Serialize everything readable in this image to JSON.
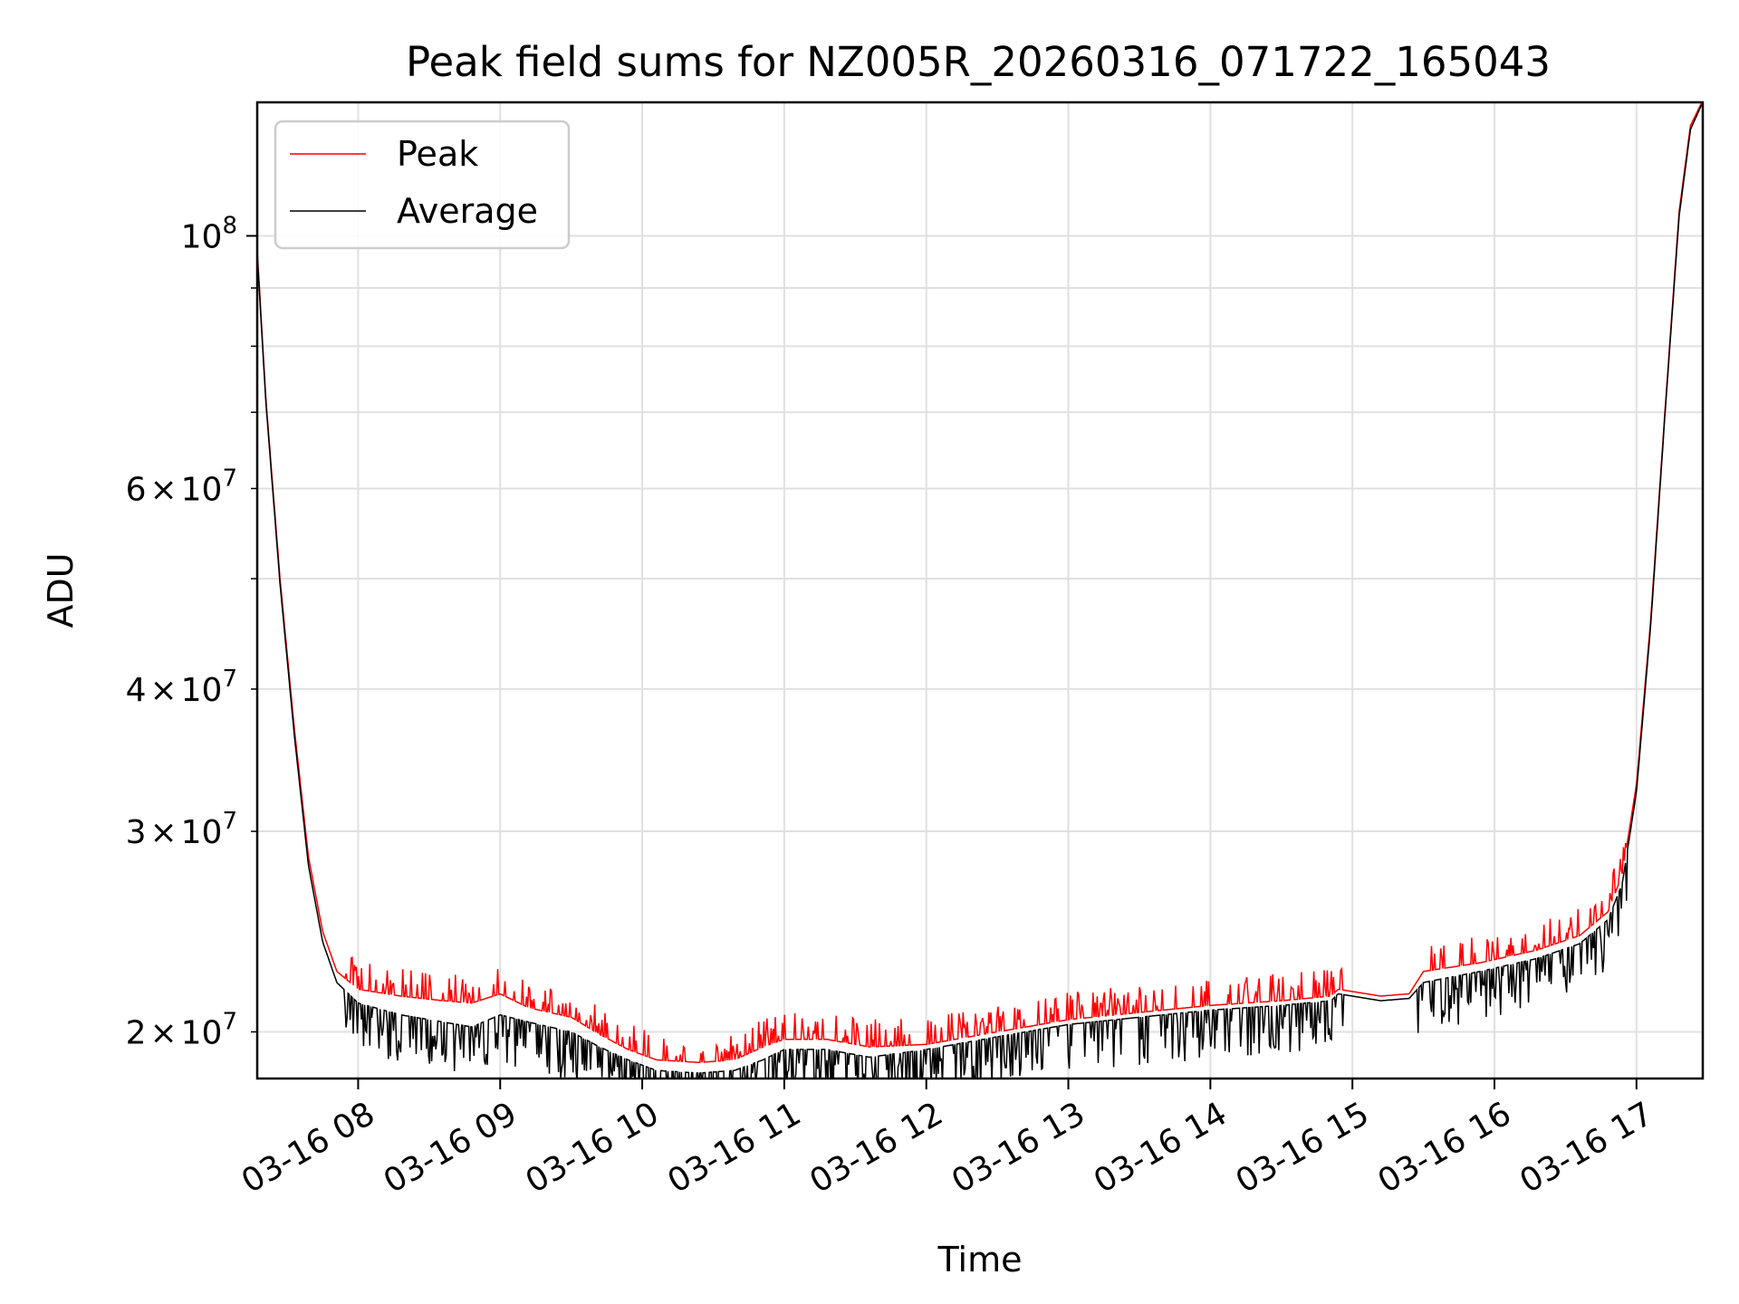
{
  "chart_data": {
    "type": "line",
    "title": "Peak field sums for NZ005R_20260316_071722_165043",
    "xlabel": "Time",
    "ylabel": "ADU",
    "yscale": "log",
    "ylim": [
      18200000,
      131000000
    ],
    "xlim": [
      "2026-03-16 07:17:22",
      "2026-03-16 17:28:00"
    ],
    "x_tick_labels": [
      "03-16 08",
      "03-16 09",
      "03-16 10",
      "03-16 11",
      "03-16 12",
      "03-16 13",
      "03-16 14",
      "03-16 15",
      "03-16 16",
      "03-16 17"
    ],
    "x_tick_hours": [
      8,
      9,
      10,
      11,
      12,
      13,
      14,
      15,
      16,
      17
    ],
    "y_major_ticks": [
      {
        "value": 100000000,
        "base": "10",
        "exp": "8",
        "mantissa": ""
      }
    ],
    "y_minor_ticks": [
      {
        "value": 20000000,
        "mantissa": "2",
        "base": "10",
        "exp": "7"
      },
      {
        "value": 30000000,
        "mantissa": "3",
        "base": "10",
        "exp": "7"
      },
      {
        "value": 40000000,
        "mantissa": "4",
        "base": "10",
        "exp": "7"
      },
      {
        "value": 60000000,
        "mantissa": "6",
        "base": "10",
        "exp": "7"
      }
    ],
    "y_minor_unlabeled": [
      50000000,
      70000000,
      80000000,
      90000000
    ],
    "grid": true,
    "legend": {
      "position": "top-left",
      "entries": [
        "Peak",
        "Average"
      ]
    },
    "series": [
      {
        "name": "Peak",
        "color": "#ff0000",
        "points": [
          [
            7.29,
            97000000
          ],
          [
            7.35,
            72000000
          ],
          [
            7.45,
            50000000
          ],
          [
            7.55,
            37000000
          ],
          [
            7.65,
            28500000
          ],
          [
            7.75,
            24500000
          ],
          [
            7.85,
            22600000
          ],
          [
            8.0,
            21800000
          ],
          [
            8.3,
            21500000
          ],
          [
            8.6,
            21300000
          ],
          [
            8.8,
            21200000
          ],
          [
            9.0,
            21600000
          ],
          [
            9.2,
            21000000
          ],
          [
            9.5,
            20600000
          ],
          [
            9.7,
            19900000
          ],
          [
            9.9,
            19300000
          ],
          [
            10.1,
            18900000
          ],
          [
            10.4,
            18800000
          ],
          [
            10.65,
            18900000
          ],
          [
            10.85,
            19400000
          ],
          [
            11.0,
            19700000
          ],
          [
            11.3,
            19700000
          ],
          [
            11.6,
            19400000
          ],
          [
            12.0,
            19500000
          ],
          [
            12.5,
            20000000
          ],
          [
            13.0,
            20500000
          ],
          [
            13.5,
            20800000
          ],
          [
            14.0,
            21100000
          ],
          [
            14.5,
            21300000
          ],
          [
            14.85,
            21500000
          ],
          [
            14.9,
            21800000
          ],
          [
            15.2,
            21500000
          ],
          [
            15.4,
            21600000
          ],
          [
            15.5,
            22600000
          ],
          [
            15.9,
            23000000
          ],
          [
            16.3,
            23600000
          ],
          [
            16.6,
            24300000
          ],
          [
            16.8,
            25500000
          ],
          [
            16.9,
            27500000
          ],
          [
            17.0,
            33000000
          ],
          [
            17.1,
            46000000
          ],
          [
            17.2,
            70000000
          ],
          [
            17.3,
            105000000
          ],
          [
            17.38,
            125000000
          ],
          [
            17.46,
            131000000
          ]
        ]
      },
      {
        "name": "Average",
        "color": "#000000",
        "points": [
          [
            7.29,
            96000000
          ],
          [
            7.35,
            71500000
          ],
          [
            7.45,
            49500000
          ],
          [
            7.55,
            36500000
          ],
          [
            7.65,
            28000000
          ],
          [
            7.75,
            24000000
          ],
          [
            7.85,
            22100000
          ],
          [
            8.0,
            21200000
          ],
          [
            8.3,
            20700000
          ],
          [
            8.6,
            20400000
          ],
          [
            8.8,
            20200000
          ],
          [
            9.0,
            20700000
          ],
          [
            9.2,
            20400000
          ],
          [
            9.5,
            20000000
          ],
          [
            9.7,
            19400000
          ],
          [
            9.9,
            18900000
          ],
          [
            10.1,
            18500000
          ],
          [
            10.4,
            18400000
          ],
          [
            10.65,
            18500000
          ],
          [
            10.85,
            18900000
          ],
          [
            11.0,
            19300000
          ],
          [
            11.3,
            19300000
          ],
          [
            11.6,
            19000000
          ],
          [
            12.0,
            19300000
          ],
          [
            12.5,
            19800000
          ],
          [
            13.0,
            20300000
          ],
          [
            13.5,
            20600000
          ],
          [
            14.0,
            20900000
          ],
          [
            14.5,
            21100000
          ],
          [
            14.85,
            21300000
          ],
          [
            14.9,
            21600000
          ],
          [
            15.2,
            21300000
          ],
          [
            15.4,
            21400000
          ],
          [
            15.5,
            22100000
          ],
          [
            15.9,
            22600000
          ],
          [
            16.3,
            23200000
          ],
          [
            16.6,
            23900000
          ],
          [
            16.8,
            25100000
          ],
          [
            16.9,
            27000000
          ],
          [
            17.0,
            32500000
          ],
          [
            17.1,
            45500000
          ],
          [
            17.2,
            69500000
          ],
          [
            17.3,
            104000000
          ],
          [
            17.38,
            124000000
          ],
          [
            17.46,
            130500000
          ]
        ]
      }
    ]
  }
}
